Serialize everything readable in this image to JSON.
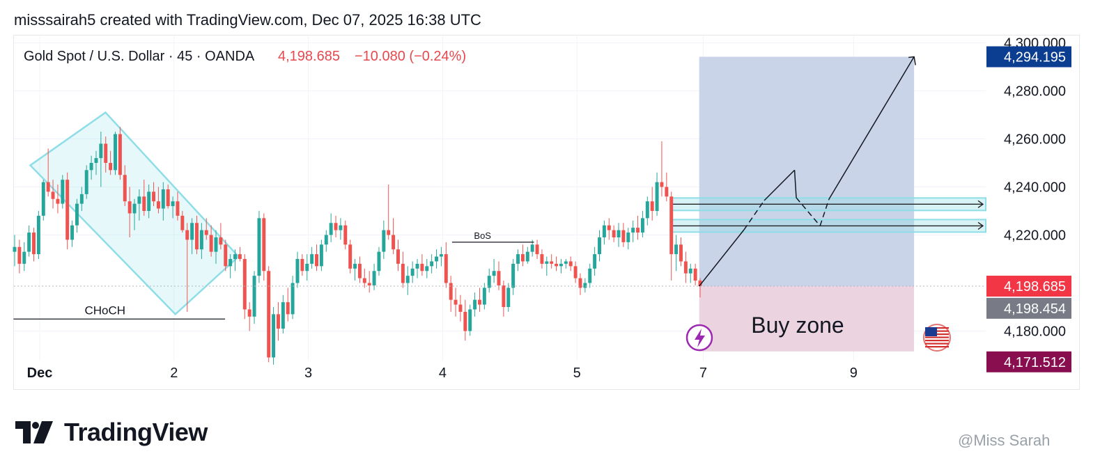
{
  "header": {
    "caption": "misssairah5 created with TradingView.com, Dec 07, 2025 16:38 UTC"
  },
  "symbol": {
    "name": "Gold Spot / U.S. Dollar · 45 · OANDA",
    "price": "4,198.685",
    "change": "−10.080 (−0.24%)"
  },
  "branding": {
    "logo_text": "TradingView",
    "watermark": "@Miss Sarah"
  },
  "colors": {
    "up": "#26a69a",
    "down": "#ef5350",
    "channel": "#8fdde6",
    "target_zone": "#c7d2e8",
    "stop_zone": "#ead2de",
    "price_label_up": "#f23645",
    "price_label_gray": "#787b86",
    "target_label": "#0b3d91",
    "stop_label": "#880e4f"
  },
  "chart_data": {
    "type": "candlestick",
    "symbol": "XAUUSD",
    "interval": "45",
    "ylim": [
      4168,
      4305
    ],
    "y_ticks": [
      "4,300.000",
      "4,280.000",
      "4,260.000",
      "4,240.000",
      "4,220.000",
      "4,180.000"
    ],
    "x_ticks": [
      {
        "label": "Dec",
        "t": 0
      },
      {
        "label": "2",
        "t": 1
      },
      {
        "label": "3",
        "t": 2
      },
      {
        "label": "4",
        "t": 3
      },
      {
        "label": "5",
        "t": 4
      },
      {
        "label": "7",
        "t": 4.94
      },
      {
        "label": "9",
        "t": 6.06
      }
    ],
    "price_labels": [
      {
        "label": "4,294.195",
        "value": 4294.195,
        "role": "target"
      },
      {
        "label": "4,198.685",
        "value": 4198.685,
        "role": "last"
      },
      {
        "label": "4,198.454",
        "value": 4198.454,
        "role": "prev"
      },
      {
        "label": "4,171.512",
        "value": 4171.512,
        "role": "stop"
      }
    ],
    "annotations": {
      "choch": {
        "text": "CHoCH",
        "y": 4185,
        "t0": -0.2,
        "t1": 1.38
      },
      "bos": {
        "text": "BoS",
        "y": 4217,
        "t0": 3.07,
        "t1": 3.68
      },
      "buy_zone": {
        "text": "Buy zone",
        "t0": 4.91,
        "t1": 6.51,
        "top": 4294.195,
        "entry": 4198.685,
        "bottom": 4171.512
      },
      "resistance_bands": [
        4232.8,
        4223.8
      ],
      "projection": [
        [
          4.91,
          4198.685
        ],
        [
          5.62,
          4247
        ],
        [
          5.81,
          4223.8
        ],
        [
          6.51,
          4294.195
        ]
      ],
      "channel": [
        [
          -0.07,
          4249
        ],
        [
          0.49,
          4271
        ],
        [
          1.48,
          4211
        ],
        [
          1.01,
          4187
        ]
      ]
    },
    "candles": [
      [
        4213.0,
        4220.0,
        4207.0,
        4215.0
      ],
      [
        4215.0,
        4218.0,
        4204.0,
        4208.0
      ],
      [
        4208.0,
        4217.0,
        4205.0,
        4213.0
      ],
      [
        4213.0,
        4224.0,
        4211.0,
        4221.0
      ],
      [
        4221.0,
        4223.0,
        4209.0,
        4212.0
      ],
      [
        4212.0,
        4230.0,
        4210.0,
        4228.0
      ],
      [
        4228.0,
        4243.0,
        4226.0,
        4242.0
      ],
      [
        4242.0,
        4256.0,
        4236.0,
        4238.0
      ],
      [
        4238.0,
        4243.0,
        4231.0,
        4235.0
      ],
      [
        4235.0,
        4241.0,
        4229.0,
        4233.0
      ],
      [
        4233.0,
        4245.0,
        4231.0,
        4243.0
      ],
      [
        4243.0,
        4246.0,
        4214.0,
        4218.0
      ],
      [
        4218.0,
        4226.0,
        4215.0,
        4224.0
      ],
      [
        4224.0,
        4235.0,
        4221.0,
        4233.0
      ],
      [
        4233.0,
        4240.0,
        4230.0,
        4237.0
      ],
      [
        4237.0,
        4249.0,
        4235.0,
        4247.0
      ],
      [
        4247.0,
        4253.0,
        4243.0,
        4250.0
      ],
      [
        4250.0,
        4255.0,
        4245.0,
        4252.0
      ],
      [
        4252.0,
        4263.0,
        4240.0,
        4258.0
      ],
      [
        4258.0,
        4261.0,
        4246.0,
        4250.0
      ],
      [
        4250.0,
        4255.0,
        4245.0,
        4247.0
      ],
      [
        4247.0,
        4263.0,
        4245.0,
        4262.0
      ],
      [
        4262.0,
        4265.0,
        4243.0,
        4245.0
      ],
      [
        4245.0,
        4249.0,
        4232.0,
        4234.0
      ],
      [
        4234.0,
        4240.0,
        4219.0,
        4229.0
      ],
      [
        4229.0,
        4235.0,
        4222.0,
        4233.0
      ],
      [
        4233.0,
        4239.0,
        4226.0,
        4236.0
      ],
      [
        4236.0,
        4243.0,
        4228.0,
        4230.0
      ],
      [
        4230.0,
        4241.0,
        4227.0,
        4238.0
      ],
      [
        4238.0,
        4242.0,
        4232.0,
        4234.0
      ],
      [
        4234.0,
        4240.0,
        4229.0,
        4231.0
      ],
      [
        4231.0,
        4242.0,
        4226.0,
        4239.0
      ],
      [
        4239.0,
        4241.0,
        4231.0,
        4232.0
      ],
      [
        4232.0,
        4236.0,
        4227.0,
        4234.0
      ],
      [
        4234.0,
        4238.0,
        4226.0,
        4228.0
      ],
      [
        4228.0,
        4230.0,
        4221.0,
        4222.0
      ],
      [
        4222.0,
        4225.0,
        4188.0,
        4218.0
      ],
      [
        4218.0,
        4227.0,
        4212.0,
        4225.0
      ],
      [
        4225.0,
        4228.0,
        4212.0,
        4214.0
      ],
      [
        4214.0,
        4225.0,
        4210.0,
        4222.0
      ],
      [
        4222.0,
        4227.0,
        4218.0,
        4220.0
      ],
      [
        4220.0,
        4224.0,
        4211.0,
        4213.0
      ],
      [
        4213.0,
        4222.0,
        4208.0,
        4219.0
      ],
      [
        4219.0,
        4225.0,
        4214.0,
        4216.0
      ],
      [
        4216.0,
        4218.0,
        4205.0,
        4207.0
      ],
      [
        4207.0,
        4212.0,
        4202.0,
        4210.0
      ],
      [
        4210.0,
        4214.0,
        4205.0,
        4212.0
      ],
      [
        4212.0,
        4215.0,
        4209.0,
        4210.0
      ],
      [
        4210.0,
        4212.0,
        4185.0,
        4189.0
      ],
      [
        4189.0,
        4192.0,
        4180.0,
        4186.0
      ],
      [
        4186.0,
        4205.0,
        4183.0,
        4203.0
      ],
      [
        4203.0,
        4230.0,
        4200.0,
        4227.0
      ],
      [
        4227.0,
        4229.0,
        4201.0,
        4205.0
      ],
      [
        4205.0,
        4207.0,
        4167.0,
        4169.0
      ],
      [
        4169.0,
        4190.0,
        4166.0,
        4187.0
      ],
      [
        4187.0,
        4192.0,
        4176.0,
        4181.0
      ],
      [
        4181.0,
        4195.0,
        4179.0,
        4192.0
      ],
      [
        4192.0,
        4198.0,
        4184.0,
        4187.0
      ],
      [
        4187.0,
        4203.0,
        4185.0,
        4200.0
      ],
      [
        4200.0,
        4213.0,
        4198.0,
        4210.0
      ],
      [
        4210.0,
        4212.0,
        4203.0,
        4205.0
      ],
      [
        4205.0,
        4212.0,
        4201.0,
        4208.0
      ],
      [
        4208.0,
        4215.0,
        4206.0,
        4212.0
      ],
      [
        4212.0,
        4216.0,
        4205.0,
        4207.0
      ],
      [
        4207.0,
        4218.0,
        4205.0,
        4216.0
      ],
      [
        4216.0,
        4222.0,
        4213.0,
        4220.0
      ],
      [
        4220.0,
        4229.0,
        4217.0,
        4225.0
      ],
      [
        4225.0,
        4228.0,
        4219.0,
        4222.0
      ],
      [
        4222.0,
        4227.0,
        4218.0,
        4224.0
      ],
      [
        4224.0,
        4226.0,
        4214.0,
        4216.0
      ],
      [
        4216.0,
        4218.0,
        4204.0,
        4206.0
      ],
      [
        4206.0,
        4210.0,
        4201.0,
        4208.0
      ],
      [
        4208.0,
        4211.0,
        4200.0,
        4202.0
      ],
      [
        4202.0,
        4206.0,
        4198.0,
        4200.0
      ],
      [
        4200.0,
        4205.0,
        4196.0,
        4199.0
      ],
      [
        4199.0,
        4208.0,
        4197.0,
        4205.0
      ],
      [
        4205.0,
        4215.0,
        4203.0,
        4213.0
      ],
      [
        4213.0,
        4226.0,
        4210.0,
        4222.0
      ],
      [
        4222.0,
        4241.0,
        4218.0,
        4220.0
      ],
      [
        4220.0,
        4227.0,
        4212.0,
        4214.0
      ],
      [
        4214.0,
        4218.0,
        4205.0,
        4208.0
      ],
      [
        4208.0,
        4213.0,
        4198.0,
        4200.0
      ],
      [
        4200.0,
        4207.0,
        4195.0,
        4203.0
      ],
      [
        4203.0,
        4209.0,
        4200.0,
        4206.0
      ],
      [
        4206.0,
        4210.0,
        4202.0,
        4208.0
      ],
      [
        4208.0,
        4212.0,
        4203.0,
        4205.0
      ],
      [
        4205.0,
        4210.0,
        4202.0,
        4207.0
      ],
      [
        4207.0,
        4212.0,
        4204.0,
        4209.0
      ],
      [
        4209.0,
        4214.0,
        4206.0,
        4211.0
      ],
      [
        4211.0,
        4215.0,
        4207.0,
        4212.0
      ],
      [
        4212.0,
        4217.0,
        4198.0,
        4200.0
      ],
      [
        4200.0,
        4203.0,
        4188.0,
        4193.0
      ],
      [
        4193.0,
        4198.0,
        4186.0,
        4191.0
      ],
      [
        4191.0,
        4195.0,
        4184.0,
        4188.0
      ],
      [
        4188.0,
        4193.0,
        4176.0,
        4180.0
      ],
      [
        4180.0,
        4191.0,
        4178.0,
        4189.0
      ],
      [
        4189.0,
        4196.0,
        4186.0,
        4193.0
      ],
      [
        4193.0,
        4198.0,
        4188.0,
        4191.0
      ],
      [
        4191.0,
        4200.0,
        4189.0,
        4198.0
      ],
      [
        4198.0,
        4206.0,
        4196.0,
        4203.0
      ],
      [
        4203.0,
        4210.0,
        4200.0,
        4205.0
      ],
      [
        4205.0,
        4209.0,
        4197.0,
        4199.0
      ],
      [
        4199.0,
        4201.0,
        4186.0,
        4190.0
      ],
      [
        4190.0,
        4200.0,
        4188.0,
        4198.0
      ],
      [
        4198.0,
        4210.0,
        4195.0,
        4208.0
      ],
      [
        4208.0,
        4214.0,
        4205.0,
        4212.0
      ],
      [
        4212.0,
        4216.0,
        4207.0,
        4209.0
      ],
      [
        4209.0,
        4215.0,
        4208.0,
        4213.0
      ],
      [
        4213.0,
        4218.0,
        4211.0,
        4216.0
      ],
      [
        4216.0,
        4218.0,
        4210.0,
        4212.0
      ],
      [
        4212.0,
        4214.0,
        4206.0,
        4208.0
      ],
      [
        4208.0,
        4211.0,
        4203.0,
        4209.0
      ],
      [
        4209.0,
        4212.0,
        4206.0,
        4208.0
      ],
      [
        4208.0,
        4211.0,
        4205.0,
        4207.0
      ],
      [
        4207.0,
        4210.0,
        4204.0,
        4208.0
      ],
      [
        4208.0,
        4210.0,
        4206.0,
        4209.0
      ],
      [
        4209.0,
        4211.0,
        4205.0,
        4207.0
      ],
      [
        4207.0,
        4209.0,
        4200.0,
        4202.0
      ],
      [
        4202.0,
        4204.0,
        4195.0,
        4198.0
      ],
      [
        4198.0,
        4202.0,
        4196.0,
        4200.0
      ],
      [
        4200.0,
        4208.0,
        4198.0,
        4206.0
      ],
      [
        4206.0,
        4215.0,
        4203.0,
        4212.0
      ],
      [
        4212.0,
        4222.0,
        4209.0,
        4219.0
      ],
      [
        4219.0,
        4226.0,
        4216.0,
        4224.0
      ],
      [
        4224.0,
        4227.0,
        4218.0,
        4222.0
      ],
      [
        4222.0,
        4224.0,
        4217.0,
        4219.0
      ],
      [
        4219.0,
        4225.0,
        4215.0,
        4222.0
      ],
      [
        4222.0,
        4225.0,
        4215.0,
        4217.0
      ],
      [
        4217.0,
        4223.0,
        4214.0,
        4221.0
      ],
      [
        4221.0,
        4226.0,
        4217.0,
        4223.0
      ],
      [
        4223.0,
        4228.0,
        4218.0,
        4221.0
      ],
      [
        4221.0,
        4230.0,
        4219.0,
        4227.0
      ],
      [
        4227.0,
        4236.0,
        4224.0,
        4234.0
      ],
      [
        4234.0,
        4240.0,
        4226.0,
        4230.0
      ],
      [
        4230.0,
        4246.0,
        4228.0,
        4242.0
      ],
      [
        4242.0,
        4259.0,
        4236.0,
        4240.0
      ],
      [
        4240.0,
        4246.0,
        4234.0,
        4236.0
      ],
      [
        4236.0,
        4238.0,
        4201.0,
        4212.0
      ],
      [
        4212.0,
        4220.0,
        4205.0,
        4216.0
      ],
      [
        4216.0,
        4219.0,
        4207.0,
        4209.0
      ],
      [
        4209.0,
        4213.0,
        4200.0,
        4204.0
      ],
      [
        4204.0,
        4208.0,
        4200.0,
        4206.0
      ],
      [
        4206.0,
        4208.0,
        4199.0,
        4201.0
      ],
      [
        4201.0,
        4202.0,
        4194.0,
        4198.7
      ]
    ]
  }
}
